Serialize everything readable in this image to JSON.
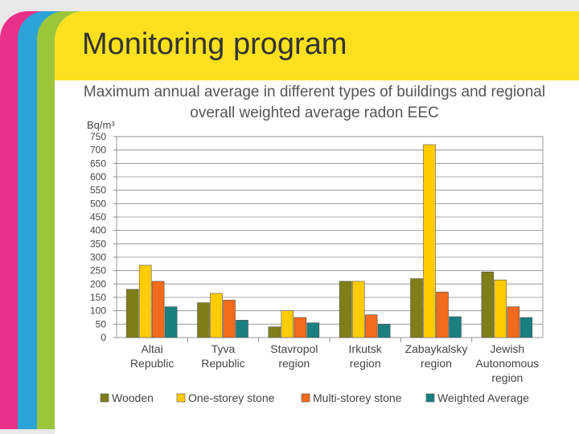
{
  "slide": {
    "title": "Monitoring program",
    "subtitle": "Maximum annual average in different types of buildings and regional overall weighted average radon EEC"
  },
  "chart_data": {
    "type": "bar",
    "ylabel": "Bq/m³",
    "ylim": [
      0,
      750
    ],
    "ytick_step": 50,
    "grid": true,
    "legend_placement": "bottom",
    "categories": [
      [
        "Altai",
        "Republic"
      ],
      [
        "Tyva",
        "Republic"
      ],
      [
        "Stavropol",
        "region"
      ],
      [
        "Irkutsk",
        "region"
      ],
      [
        "Zabaykalsky",
        "region"
      ],
      [
        "Jewish",
        "Autonomous",
        "region"
      ]
    ],
    "series": [
      {
        "name": "Wooden",
        "color": "#7f7f1a",
        "values": [
          180,
          130,
          40,
          210,
          220,
          245
        ]
      },
      {
        "name": "One-storey stone",
        "color": "#ffcc00",
        "values": [
          270,
          165,
          100,
          210,
          720,
          215
        ]
      },
      {
        "name": "Multi-storey stone",
        "color": "#f26a1b",
        "values": [
          210,
          140,
          75,
          85,
          170,
          115
        ]
      },
      {
        "name": "Weighted Average",
        "color": "#1a7f7f",
        "values": [
          115,
          65,
          55,
          50,
          78,
          75
        ]
      }
    ]
  }
}
